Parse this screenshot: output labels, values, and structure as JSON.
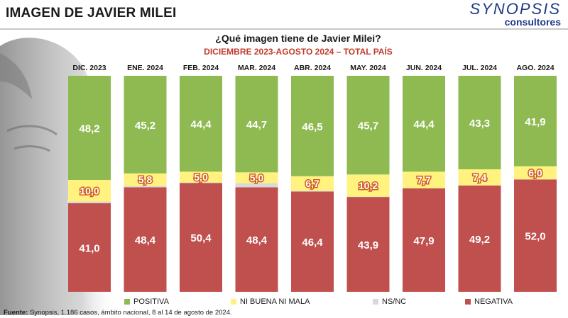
{
  "header": {
    "title": "IMAGEN DE JAVIER MILEI",
    "logo_main": "SYNOPSIS",
    "logo_sub": "consultores"
  },
  "chart_data": {
    "type": "bar",
    "stacked": true,
    "title": "¿Qué imagen tiene de Javier Milei?",
    "subtitle": "DICIEMBRE 2023-AGOSTO 2024 – TOTAL PAÍS",
    "categories": [
      "DIC. 2023",
      "ENE. 2024",
      "FEB. 2024",
      "MAR. 2024",
      "ABR. 2024",
      "MAY. 2024",
      "JUN. 2024",
      "JUL. 2024",
      "AGO. 2024"
    ],
    "series": [
      {
        "name": "NEGATIVA",
        "color": "#c0504d",
        "values": [
          41.0,
          48.4,
          50.4,
          48.4,
          46.4,
          43.9,
          47.9,
          49.2,
          52.0
        ],
        "labels": [
          "41,0",
          "48,4",
          "50,4",
          "48,4",
          "46,4",
          "43,9",
          "47,9",
          "49,2",
          "52,0"
        ]
      },
      {
        "name": "NS/NC",
        "color": "#d9d9d9",
        "values": [
          0.8,
          0.6,
          0.2,
          1.9,
          0.4,
          0.2,
          0.0,
          0.1,
          0.1
        ],
        "labels": [
          "",
          "",
          "",
          "",
          "",
          "",
          "",
          "",
          ""
        ]
      },
      {
        "name": "NI BUENA NI MALA",
        "color": "#fff27f",
        "values": [
          10.0,
          5.8,
          5.0,
          5.0,
          6.7,
          10.2,
          7.7,
          7.4,
          6.0
        ],
        "labels": [
          "10,0",
          "5,8",
          "5,0",
          "5,0",
          "6,7",
          "10,2",
          "7,7",
          "7,4",
          "6,0"
        ]
      },
      {
        "name": "POSITIVA",
        "color": "#8fba52",
        "values": [
          48.2,
          45.2,
          44.4,
          44.7,
          46.5,
          45.7,
          44.4,
          43.3,
          41.9
        ],
        "labels": [
          "48,2",
          "45,2",
          "44,4",
          "44,7",
          "46,5",
          "45,7",
          "44,4",
          "43,3",
          "41,9"
        ]
      }
    ],
    "ylim": [
      0,
      100
    ],
    "legend_position": "bottom",
    "legend_order": [
      "POSITIVA",
      "NI BUENA NI MALA",
      "NS/NC",
      "NEGATIVA"
    ]
  },
  "footer": {
    "label": "Fuente:",
    "text": " Synopsis, 1.186 casos, ámbito nacional, 8 al 14 de agosto de 2024."
  }
}
